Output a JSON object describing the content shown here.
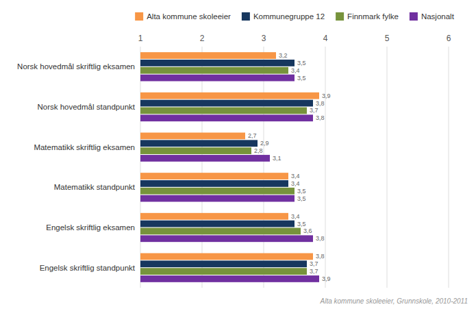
{
  "chart_data": {
    "type": "bar",
    "orientation": "horizontal",
    "categories": [
      "Norsk hovedmål skriftlig eksamen",
      "Norsk hovedmål standpunkt",
      "Matematikk skriftlig eksamen",
      "Matematikk standpunkt",
      "Engelsk skriftlig eksamen",
      "Engelsk skriftlig standpunkt"
    ],
    "series": [
      {
        "name": "Alta kommune skoleeier",
        "color": "#F79646",
        "values": [
          3.2,
          3.9,
          2.7,
          3.4,
          3.4,
          3.8
        ],
        "value_labels": [
          "3,2",
          "3,9",
          "2,7",
          "3,4",
          "3,4",
          "3,8"
        ]
      },
      {
        "name": "Kommunegruppe 12",
        "color": "#17375E",
        "values": [
          3.5,
          3.8,
          2.9,
          3.4,
          3.5,
          3.7
        ],
        "value_labels": [
          "3,5",
          "3,8",
          "2,9",
          "3,4",
          "3,5",
          "3,7"
        ]
      },
      {
        "name": "Finnmark fylke",
        "color": "#77933C",
        "values": [
          3.4,
          3.7,
          2.8,
          3.5,
          3.6,
          3.7
        ],
        "value_labels": [
          "3,4",
          "3,7",
          "2,8",
          "3,5",
          "3,6",
          "3,7"
        ]
      },
      {
        "name": "Nasjonalt",
        "color": "#7030A0",
        "values": [
          3.5,
          3.8,
          3.1,
          3.5,
          3.8,
          3.9
        ],
        "value_labels": [
          "3,5",
          "3,8",
          "3,1",
          "3,5",
          "3,8",
          "3,9"
        ]
      }
    ],
    "xlim": [
      1,
      6
    ],
    "xticks": [
      1,
      2,
      3,
      4,
      5,
      6
    ],
    "grid": true,
    "legend": "top",
    "data_labels": true,
    "annotations": [
      "Alta kommune skoleeier, Grunnskole, 2010-2011"
    ]
  }
}
